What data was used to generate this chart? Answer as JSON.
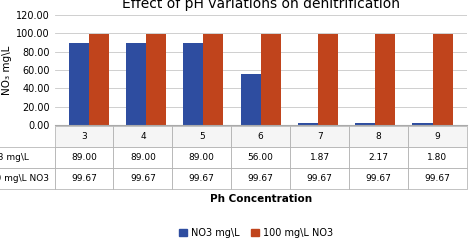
{
  "title": "Effect of pH variations on denitrification",
  "xlabel": "Ph Concentration",
  "ylabel": "NO₃ mg\\L",
  "categories": [
    "3",
    "4",
    "5",
    "6",
    "7",
    "8",
    "9"
  ],
  "series1_label": "NO3 mg\\L",
  "series2_label": "100 mg\\L NO3",
  "series1_values": [
    89.0,
    89.0,
    89.0,
    56.0,
    1.87,
    2.17,
    1.8
  ],
  "series2_values": [
    99.67,
    99.67,
    99.67,
    99.67,
    99.67,
    99.67,
    99.67
  ],
  "series1_color": "#2E4DA0",
  "series2_color": "#C0441C",
  "ylim": [
    0,
    120
  ],
  "yticks": [
    0.0,
    20.0,
    40.0,
    60.0,
    80.0,
    100.0,
    120.0
  ],
  "title_fontsize": 10,
  "axis_label_fontsize": 7.5,
  "tick_fontsize": 7,
  "legend_fontsize": 7,
  "table_fontsize": 6.5,
  "bar_width": 0.35,
  "background_color": "#ffffff",
  "grid_color": "#c8c8c8",
  "table_border_color": "#aaaaaa",
  "legend_square_size": 8
}
